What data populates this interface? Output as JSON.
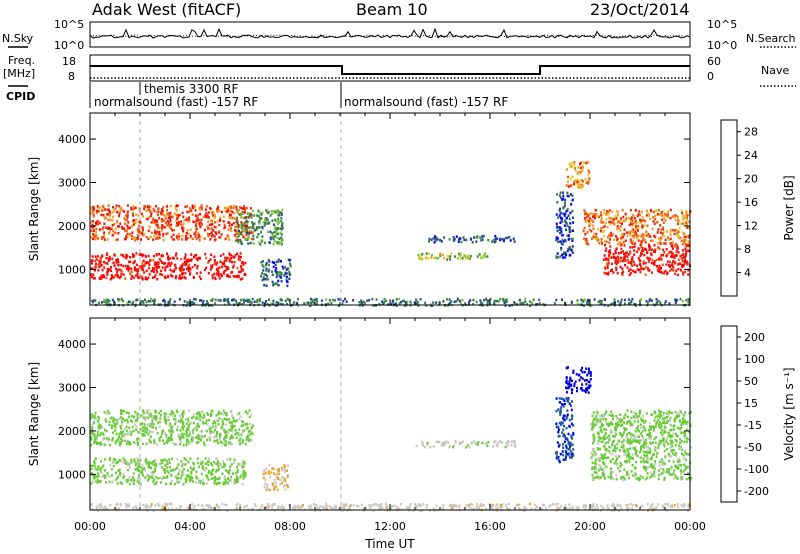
{
  "header": {
    "station": "Adak West (fitACF)",
    "beam": "Beam 10",
    "date": "23/Oct/2014"
  },
  "summary_panel": {
    "nsky_label": "N.Sky",
    "nsearch_label": "N.Search",
    "noise_ticks": [
      "10^5",
      "10^0"
    ],
    "freq_label": "Freq.",
    "freq_unit": "[MHz]",
    "freq_ticks": [
      "18",
      "8"
    ],
    "nave_label": "Nave",
    "nave_ticks": [
      "60",
      "0"
    ],
    "cpid_label": "CPID",
    "cpid_segments": [
      {
        "label": "normalsound (fast) -157 RF",
        "start_hour": 0,
        "end_hour": 10
      },
      {
        "label": "themis 3300 RF",
        "start_hour": 2,
        "end_hour": 3.5
      },
      {
        "label": "normalsound (fast) -157 RF",
        "start_hour": 10,
        "end_hour": 24
      }
    ]
  },
  "chart_data": [
    {
      "type": "heatmap",
      "title": "",
      "xlabel": "Time UT",
      "ylabel": "Slant Range [km]",
      "x_ticks": [
        "00:00",
        "04:00",
        "08:00",
        "12:00",
        "16:00",
        "20:00",
        "00:00"
      ],
      "y_ticks": [
        1000,
        2000,
        3000,
        4000
      ],
      "xlim_hours": [
        0,
        24
      ],
      "ylim_km": [
        180,
        4600
      ],
      "colorbar": {
        "label": "Power [dB]",
        "ticks": [
          4,
          8,
          12,
          16,
          20,
          24,
          28
        ],
        "range": [
          0,
          30
        ],
        "colors": [
          "#0000ff",
          "#1e3f9c",
          "#2e6e5a",
          "#3a8a3a",
          "#7ac23a",
          "#e0d030",
          "#f5a020",
          "#f06010",
          "#e82010",
          "#ff0000"
        ]
      },
      "echo_regions": [
        {
          "t0": 0.0,
          "t1": 6.2,
          "r0": 800,
          "r1": 1400,
          "level": 28
        },
        {
          "t0": 0.0,
          "t1": 6.5,
          "r0": 1700,
          "r1": 2500,
          "level": 24
        },
        {
          "t0": 5.8,
          "t1": 7.7,
          "r0": 1600,
          "r1": 2400,
          "level": 10
        },
        {
          "t0": 6.8,
          "t1": 8.0,
          "r0": 650,
          "r1": 1250,
          "level": 6
        },
        {
          "t0": 0.0,
          "t1": 24.0,
          "r0": 190,
          "r1": 350,
          "level": 8
        },
        {
          "t0": 13.5,
          "t1": 17.0,
          "r0": 1650,
          "r1": 1800,
          "level": 6
        },
        {
          "t0": 13.0,
          "t1": 16.0,
          "r0": 1250,
          "r1": 1400,
          "level": 14
        },
        {
          "t0": 18.6,
          "t1": 19.3,
          "r0": 1300,
          "r1": 2800,
          "level": 5
        },
        {
          "t0": 19.0,
          "t1": 20.0,
          "r0": 2900,
          "r1": 3500,
          "level": 20
        },
        {
          "t0": 19.7,
          "t1": 24.0,
          "r0": 1600,
          "r1": 2400,
          "level": 22
        },
        {
          "t0": 20.5,
          "t1": 24.0,
          "r0": 900,
          "r1": 1600,
          "level": 28
        }
      ]
    },
    {
      "type": "heatmap",
      "title": "",
      "xlabel": "Time UT",
      "ylabel": "Slant Range [km]",
      "x_ticks": [
        "00:00",
        "04:00",
        "08:00",
        "12:00",
        "16:00",
        "20:00",
        "00:00"
      ],
      "y_ticks": [
        1000,
        2000,
        3000,
        4000
      ],
      "xlim_hours": [
        0,
        24
      ],
      "ylim_km": [
        180,
        4600
      ],
      "colorbar": {
        "label": "Velocity [m s⁻¹]",
        "ticks": [
          200,
          100,
          50,
          15,
          -15,
          -50,
          -100,
          -200
        ],
        "range": [
          -250,
          250
        ],
        "colors": [
          "#0000dd",
          "#1c5aa0",
          "#2e8b57",
          "#66cc33",
          "#c8c8c0",
          "#f0a020",
          "#f06010",
          "#ff0000"
        ]
      },
      "echo_regions": [
        {
          "t0": 0.0,
          "t1": 6.2,
          "r0": 800,
          "r1": 1400,
          "velocity": 0
        },
        {
          "t0": 0.0,
          "t1": 6.5,
          "r0": 1700,
          "r1": 2500,
          "velocity": 0
        },
        {
          "t0": 6.9,
          "t1": 7.9,
          "r0": 650,
          "r1": 1250,
          "velocity": -60
        },
        {
          "t0": 0.0,
          "t1": 24.0,
          "r0": 190,
          "r1": 350,
          "velocity": -40
        },
        {
          "t0": 13.0,
          "t1": 17.0,
          "r0": 1650,
          "r1": 1800,
          "velocity": -30
        },
        {
          "t0": 18.6,
          "t1": 19.3,
          "r0": 1300,
          "r1": 2800,
          "velocity": 180
        },
        {
          "t0": 19.0,
          "t1": 20.0,
          "r0": 2900,
          "r1": 3500,
          "velocity": 220
        },
        {
          "t0": 20.0,
          "t1": 24.0,
          "r0": 900,
          "r1": 2500,
          "velocity": 0
        }
      ]
    }
  ]
}
